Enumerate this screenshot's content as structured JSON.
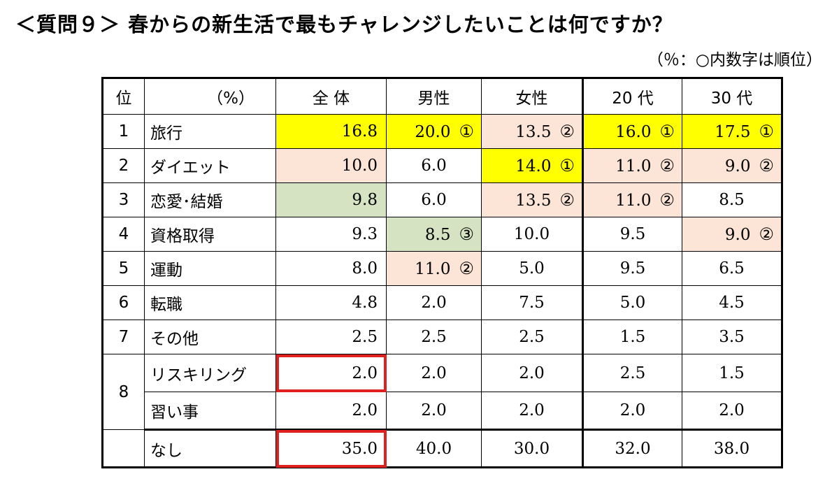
{
  "title": "＜質問９＞ 春からの新生活で最もチャレンジしたいことは何ですか？",
  "note": "（％：○内数字は順位）",
  "headers": {
    "rank": "位",
    "item": "（%）",
    "total": "全 体",
    "male": "男性",
    "female": "女性",
    "age20": "20 代",
    "age30": "30 代"
  },
  "rows": [
    {
      "rank": "1",
      "item": "旅行",
      "total": "16.8",
      "male": "20.0",
      "male_rank": "①",
      "female": "13.5",
      "female_rank": "②",
      "age20": "16.0",
      "age20_rank": "①",
      "age30": "17.5",
      "age30_rank": "①"
    },
    {
      "rank": "2",
      "item": "ダイエット",
      "total": "10.0",
      "male": "6.0",
      "female": "14.0",
      "female_rank": "①",
      "age20": "11.0",
      "age20_rank": "②",
      "age30": "9.0",
      "age30_rank": "②"
    },
    {
      "rank": "3",
      "item": "恋愛･結婚",
      "total": "9.8",
      "male": "6.0",
      "female": "13.5",
      "female_rank": "②",
      "age20": "11.0",
      "age20_rank": "②",
      "age30": "8.5"
    },
    {
      "rank": "4",
      "item": "資格取得",
      "total": "9.3",
      "male": "8.5",
      "male_rank": "③",
      "female": "10.0",
      "age20": "9.5",
      "age30": "9.0",
      "age30_rank": "②"
    },
    {
      "rank": "5",
      "item": "運動",
      "total": "8.0",
      "male": "11.0",
      "male_rank": "②",
      "female": "5.0",
      "age20": "9.5",
      "age30": "6.5"
    },
    {
      "rank": "6",
      "item": "転職",
      "total": "4.8",
      "male": "2.0",
      "female": "7.5",
      "age20": "5.0",
      "age30": "4.5"
    },
    {
      "rank": "7",
      "item": "その他",
      "total": "2.5",
      "male": "2.5",
      "female": "2.5",
      "age20": "1.5",
      "age30": "3.5"
    },
    {
      "rank": "8",
      "item": "リスキリング",
      "total": "2.0",
      "male": "2.0",
      "female": "2.0",
      "age20": "2.5",
      "age30": "1.5"
    },
    {
      "rank": "8",
      "item": "習い事",
      "total": "2.0",
      "male": "2.0",
      "female": "2.0",
      "age20": "2.0",
      "age30": "2.0"
    },
    {
      "rank": "",
      "item": "なし",
      "total": "35.0",
      "male": "40.0",
      "female": "30.0",
      "age20": "32.0",
      "age30": "38.0"
    }
  ],
  "colors": {
    "first_highlight": "#ffff00",
    "second_highlight": "#fce4d6",
    "third_highlight": "#d5e3c2",
    "box_outline": "#e0201e"
  }
}
